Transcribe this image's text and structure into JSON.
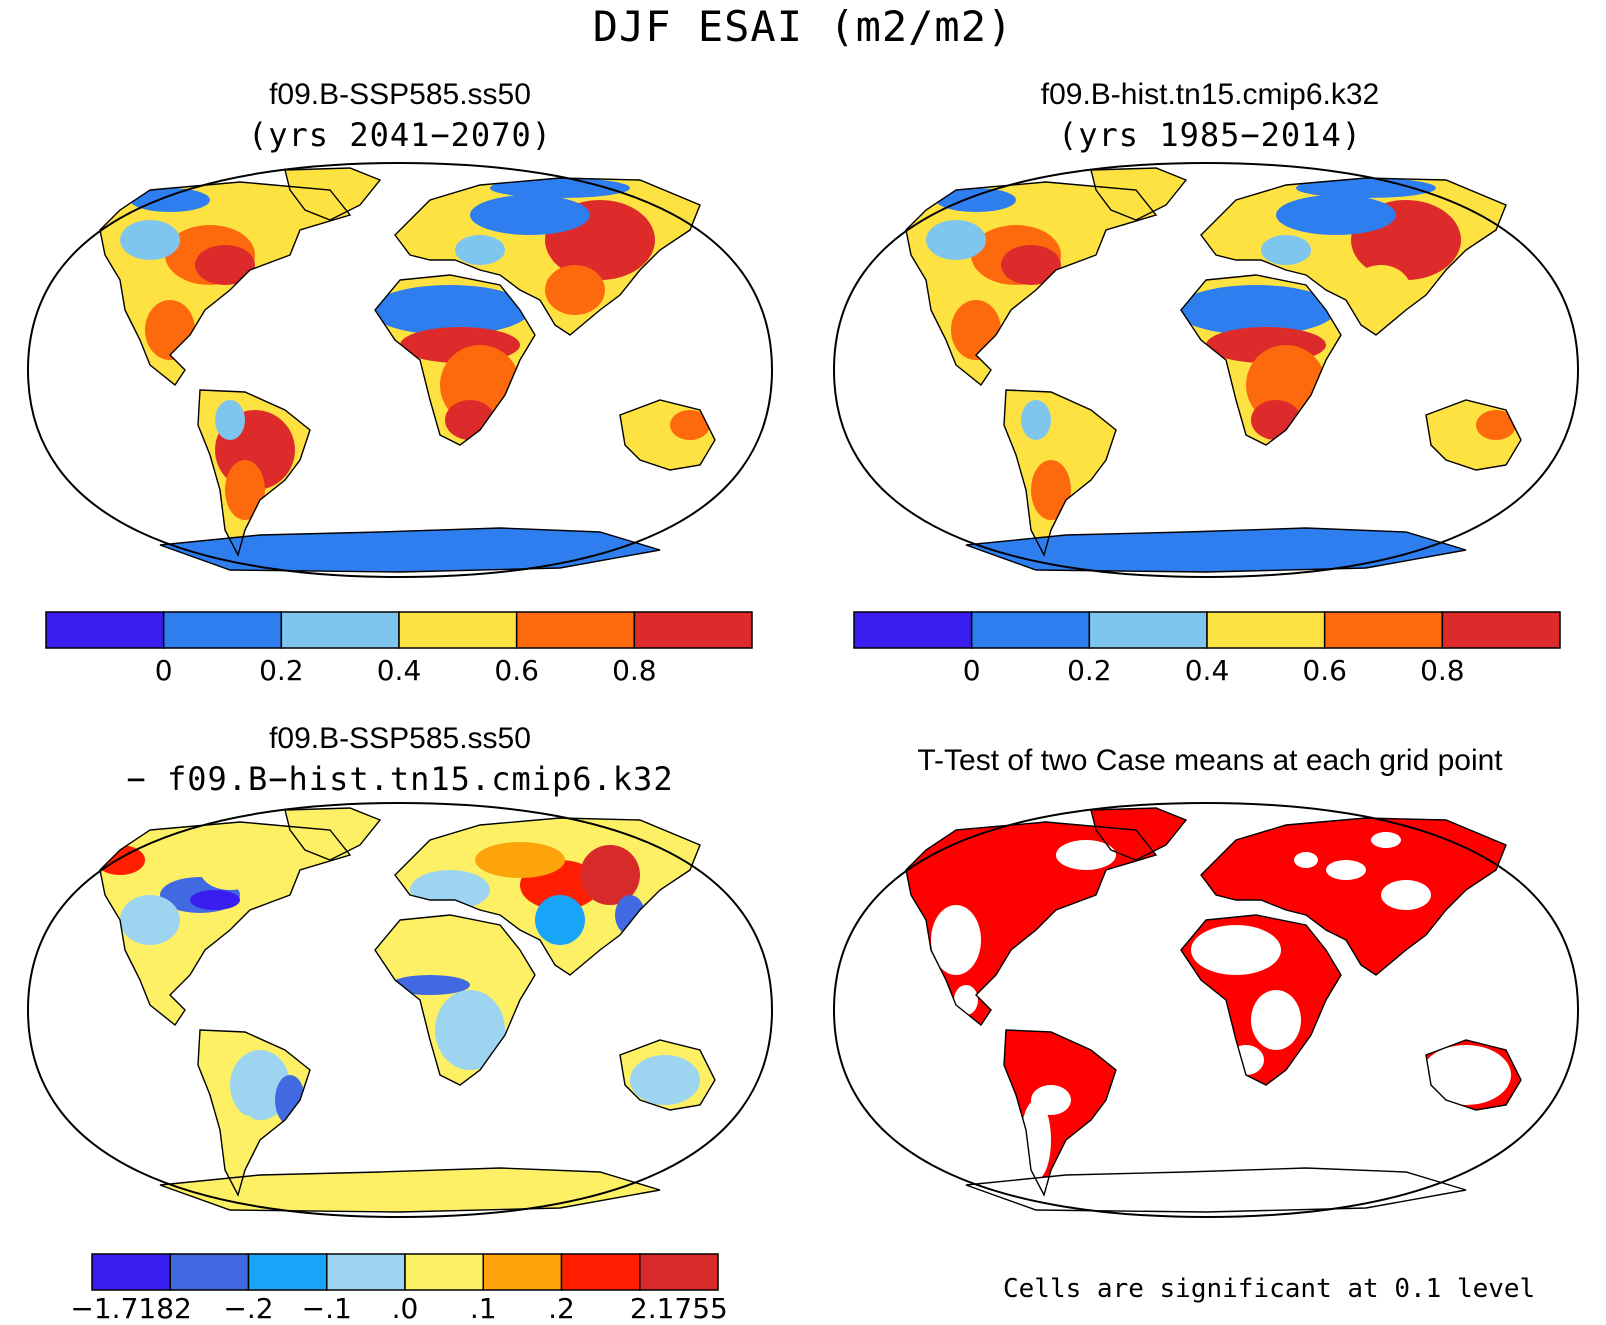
{
  "figure": {
    "title": "DJF ESAI (m2/m2)"
  },
  "panels": {
    "top_left": {
      "title": "f09.B-SSP585.ss50",
      "subtitle": "(yrs 2041−2070)"
    },
    "top_right": {
      "title": "f09.B-hist.tn15.cmip6.k32",
      "subtitle": "(yrs 1985−2014)"
    },
    "bottom_left": {
      "title": "f09.B-SSP585.ss50",
      "subtitle": "− f09.B−hist.tn15.cmip6.k32"
    },
    "bottom_right": {
      "title": "T-Test of two Case means at each grid point"
    }
  },
  "colorbars": {
    "top": {
      "colors": [
        "#3a1df0",
        "#2e7ef0",
        "#7fc6ee",
        "#fde241",
        "#fd6a0d",
        "#dd2b2b"
      ],
      "ticks": [
        "0",
        "0.2",
        "0.4",
        "0.6",
        "0.8"
      ]
    },
    "bottom": {
      "colors": [
        "#3a1df0",
        "#4169e1",
        "#19a5f7",
        "#9dd5f0",
        "#fdf064",
        "#fda40d",
        "#ff1f00",
        "#d72b2b"
      ],
      "ticks": [
        "−1.7182",
        "−.2",
        "−.1",
        ".0",
        ".1",
        ".2",
        "2.1755"
      ]
    }
  },
  "significance_note": "Cells are significant at 0.1 level",
  "map_colors": {
    "ocean": "#ffffff",
    "significant": "#ff0000",
    "antarctica_mean": "#2e7ef0",
    "antarctica_diff": "#fdf064"
  }
}
